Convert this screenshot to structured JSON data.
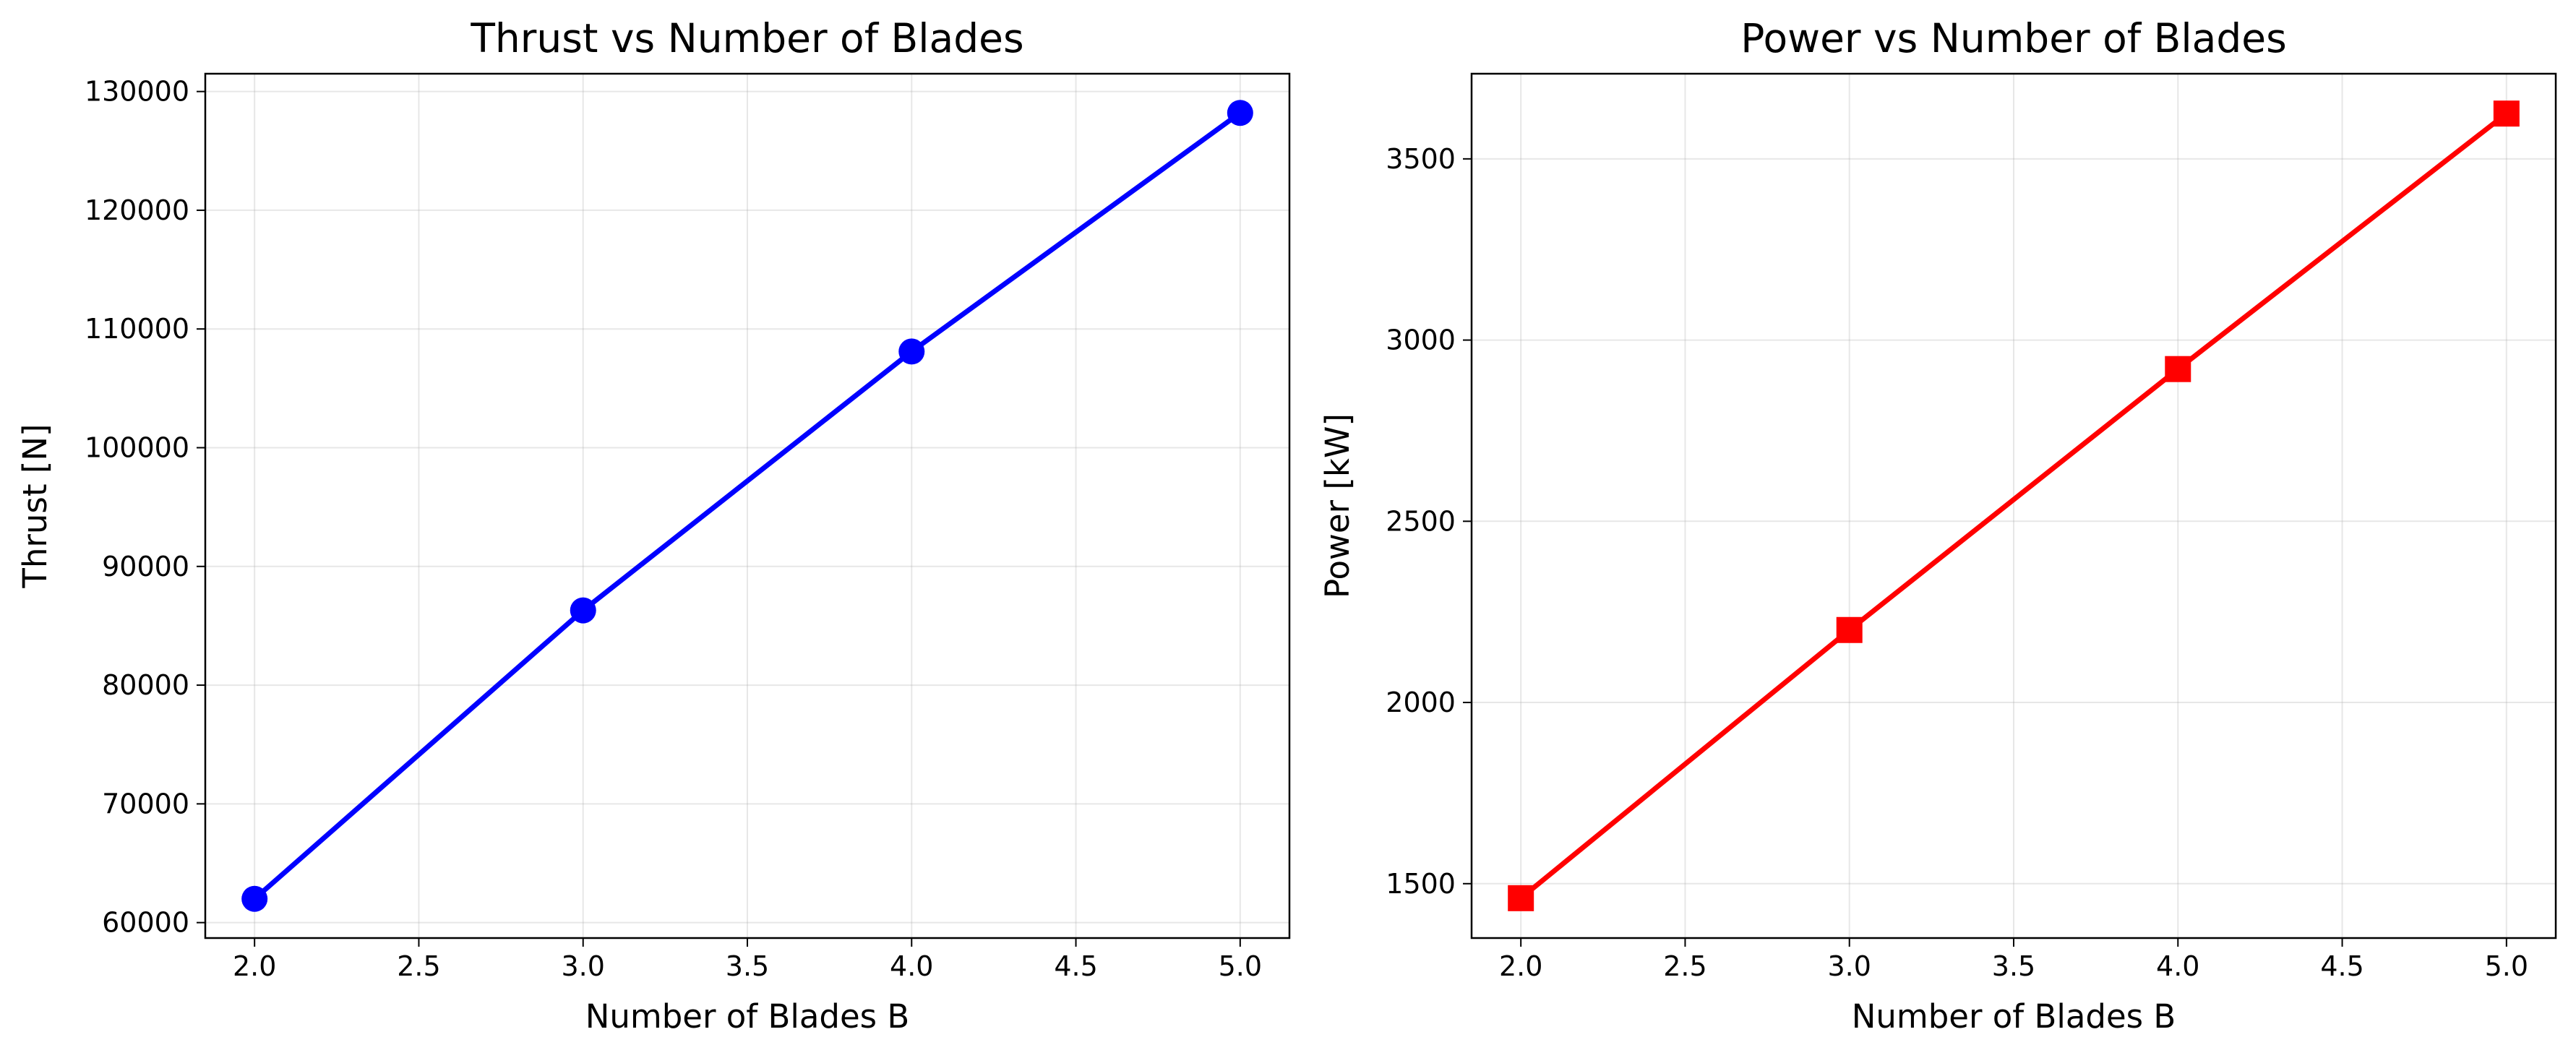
{
  "chart_data": [
    {
      "type": "line",
      "title": "Thrust vs Number of Blades",
      "xlabel": "Number of Blades B",
      "ylabel": "Thrust [N]",
      "x": [
        2.0,
        3.0,
        4.0,
        5.0
      ],
      "series": [
        {
          "values": [
            62000,
            86300,
            108100,
            128200
          ],
          "color": "#0000ff",
          "marker": "circle"
        }
      ],
      "xlim": [
        1.85,
        5.15
      ],
      "ylim": [
        58700,
        131500
      ],
      "xticks": [
        2.0,
        2.5,
        3.0,
        3.5,
        4.0,
        4.5,
        5.0
      ],
      "xtick_labels": [
        "2.0",
        "2.5",
        "3.0",
        "3.5",
        "4.0",
        "4.5",
        "5.0"
      ],
      "yticks": [
        60000,
        70000,
        80000,
        90000,
        100000,
        110000,
        120000,
        130000
      ],
      "ytick_labels": [
        "60000",
        "70000",
        "80000",
        "90000",
        "100000",
        "110000",
        "120000",
        "130000"
      ],
      "grid": true
    },
    {
      "type": "line",
      "title": "Power vs Number of Blades",
      "xlabel": "Number of Blades B",
      "ylabel": "Power [kW]",
      "x": [
        2.0,
        3.0,
        4.0,
        5.0
      ],
      "series": [
        {
          "values": [
            1460,
            2200,
            2920,
            3625
          ],
          "color": "#ff0000",
          "marker": "square"
        }
      ],
      "xlim": [
        1.85,
        5.15
      ],
      "ylim": [
        1350,
        3735
      ],
      "xticks": [
        2.0,
        2.5,
        3.0,
        3.5,
        4.0,
        4.5,
        5.0
      ],
      "xtick_labels": [
        "2.0",
        "2.5",
        "3.0",
        "3.5",
        "4.0",
        "4.5",
        "5.0"
      ],
      "yticks": [
        1500,
        2000,
        2500,
        3000,
        3500
      ],
      "ytick_labels": [
        "1500",
        "2000",
        "2500",
        "3000",
        "3500"
      ],
      "grid": true
    }
  ]
}
